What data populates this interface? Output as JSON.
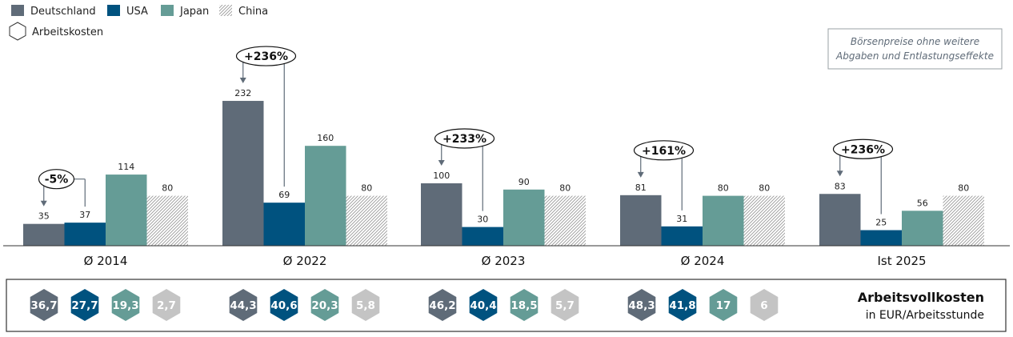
{
  "legend": {
    "items": [
      {
        "label": "Deutschland",
        "color": "#5f6b78",
        "pattern": false
      },
      {
        "label": "USA",
        "color": "#00527f",
        "pattern": false
      },
      {
        "label": "Japan",
        "color": "#659c96",
        "pattern": false
      },
      {
        "label": "China",
        "color": "#bfbfbf",
        "pattern": true
      }
    ],
    "hexagon_label": "Arbeitskosten"
  },
  "note": {
    "line1": "Börsenpreise ohne weitere",
    "line2": "Abgaben und Entlastungseffekte"
  },
  "chart_data": {
    "type": "bar",
    "categories": [
      "Ø 2014",
      "Ø 2022",
      "Ø 2023",
      "Ø 2024",
      "Ist 2025"
    ],
    "series": [
      {
        "name": "Deutschland",
        "color": "#5f6b78",
        "values": [
          35,
          232,
          100,
          81,
          83
        ]
      },
      {
        "name": "USA",
        "color": "#00527f",
        "values": [
          37,
          69,
          30,
          31,
          25
        ]
      },
      {
        "name": "Japan",
        "color": "#659c96",
        "values": [
          114,
          160,
          90,
          80,
          56
        ]
      },
      {
        "name": "China",
        "color": "#bfbfbf",
        "pattern": "hatched",
        "values": [
          80,
          80,
          80,
          80,
          80
        ]
      }
    ],
    "value_labels": [
      [
        "35",
        "37",
        "114",
        "80"
      ],
      [
        "232",
        "69",
        "160",
        "80"
      ],
      [
        "100",
        "30",
        "90",
        "80"
      ],
      [
        "81",
        "31",
        "80",
        "80"
      ],
      [
        "83",
        "25",
        "56",
        "80"
      ]
    ],
    "annotations": [
      "-5%",
      "+236%",
      "+233%",
      "+161%",
      "+236%"
    ],
    "ylim": [
      0,
      250
    ],
    "grid": false,
    "legend_position": "top-left"
  },
  "labor_costs": {
    "title": "Arbeitsvollkosten",
    "unit": "in EUR/Arbeitsstunde",
    "groups": [
      [
        "36,7",
        "27,7",
        "19,3",
        "2,7"
      ],
      [
        "44,3",
        "40,6",
        "20,3",
        "5,8"
      ],
      [
        "46,2",
        "40,4",
        "18,5",
        "5,7"
      ],
      [
        "48,3",
        "41,8",
        "17",
        "6"
      ]
    ],
    "colors": [
      "#5f6b78",
      "#00527f",
      "#659c96",
      "#c4c4c4"
    ]
  }
}
